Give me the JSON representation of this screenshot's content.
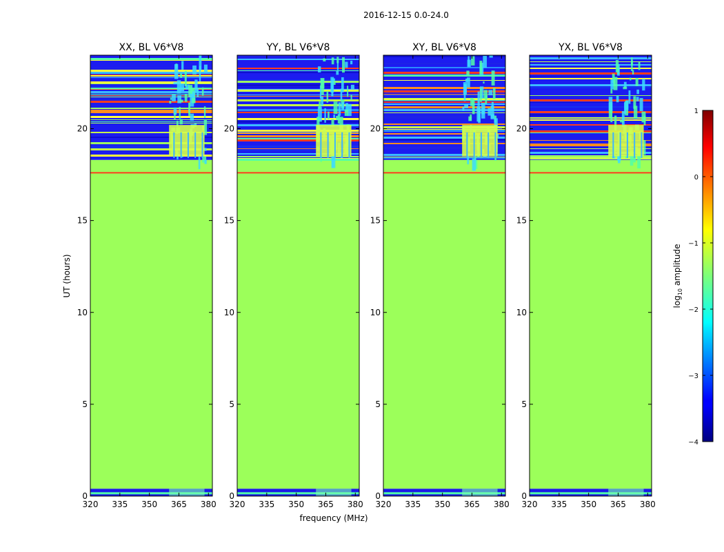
{
  "figure": {
    "suptitle": "2016-12-15 0.0-24.0",
    "ylabel": "UT (hours)",
    "xlabel": "frequency (MHz)"
  },
  "chart_data": {
    "type": "heatmap",
    "title": "2016-12-15 0.0-24.0",
    "xlabel": "frequency (MHz)",
    "ylabel": "UT (hours)",
    "xlim": [
      320,
      382
    ],
    "ylim": [
      0,
      24
    ],
    "xticks": [
      "320",
      "335",
      "350",
      "365",
      "380"
    ],
    "xtick_values": [
      320,
      335,
      350,
      365,
      380
    ],
    "yticks": [
      "0",
      "5",
      "10",
      "15",
      "20"
    ],
    "ytick_values": [
      0,
      5,
      10,
      15,
      20
    ],
    "panels": [
      {
        "title": "XX, BL V6*V8",
        "rfi_band_mhz": [
          360,
          378
        ]
      },
      {
        "title": "YY, BL V6*V8",
        "rfi_band_mhz": [
          360,
          378
        ]
      },
      {
        "title": "XY, BL V6*V8",
        "rfi_band_mhz": [
          360,
          378
        ]
      },
      {
        "title": "YX, BL V6*V8",
        "rfi_band_mhz": [
          360,
          378
        ]
      }
    ],
    "regions": {
      "flagged_hours": [
        0.4,
        18.3
      ],
      "flagged_log10_amplitude": -1.3,
      "active_hours_low": [
        0.0,
        0.4
      ],
      "active_hours_high": [
        18.3,
        24.0
      ],
      "red_line_hour": 17.6
    },
    "colorbar": {
      "label": "log",
      "label_sub": "10",
      "label_suffix": " amplitude",
      "range": [
        -4,
        1
      ],
      "ticks": [
        "1",
        "0",
        "−1",
        "−2",
        "−3",
        "−4"
      ],
      "tick_values": [
        1,
        0,
        -1,
        -2,
        -3,
        -4
      ],
      "colormap": "jet"
    }
  }
}
